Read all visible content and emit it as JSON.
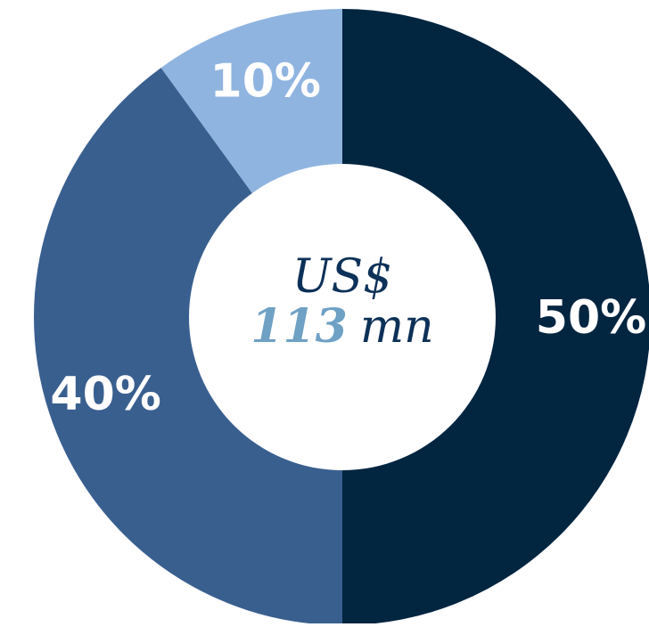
{
  "chart_data": {
    "type": "pie",
    "donut": true,
    "categories": [
      "",
      "",
      ""
    ],
    "values": [
      50,
      40,
      10
    ],
    "unit": "%",
    "labels": [
      "50%",
      "40%",
      "10%"
    ],
    "colors": [
      "#022540",
      "#395f8f",
      "#8fb4e0"
    ],
    "center_text": {
      "line1": "US$",
      "number": "113",
      "unit": "mn"
    },
    "title": "",
    "legend": "none"
  },
  "colors": {
    "center_text": "#0d3158",
    "center_number": "#6ea1c4",
    "slice_label": "#ffffff",
    "background": "#ffffff"
  }
}
